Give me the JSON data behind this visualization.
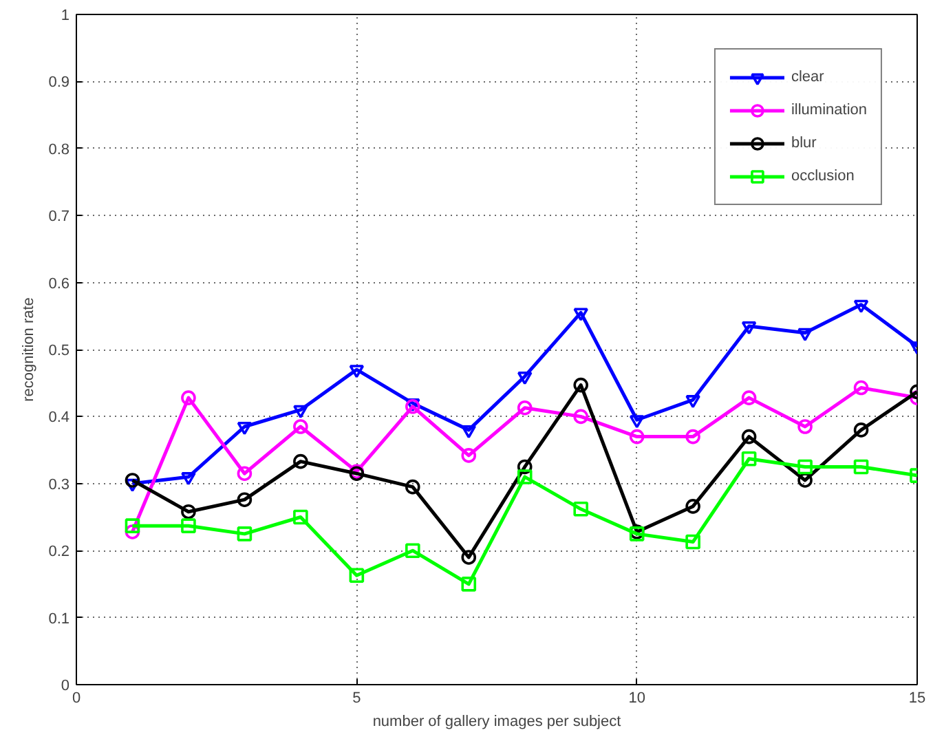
{
  "chart_data": {
    "type": "line",
    "xlabel": "number of gallery images per subject",
    "ylabel": "recognition rate",
    "x": [
      1,
      2,
      3,
      4,
      5,
      6,
      7,
      8,
      9,
      10,
      11,
      12,
      13,
      14,
      15
    ],
    "xlim": [
      0,
      15
    ],
    "xticks": [
      0,
      5,
      10,
      15
    ],
    "ylim": [
      0,
      1
    ],
    "yticks": [
      0,
      0.1,
      0.2,
      0.3,
      0.4,
      0.5,
      0.6,
      0.7,
      0.8,
      0.9,
      1
    ],
    "grid": true,
    "legend": "top right",
    "line_style": "solid",
    "series": [
      {
        "name": "clear",
        "color": "#0000ff",
        "marker": "triangle",
        "values": [
          0.3,
          0.31,
          0.385,
          0.41,
          0.47,
          0.42,
          0.38,
          0.46,
          0.555,
          0.395,
          0.425,
          0.535,
          0.525,
          0.567,
          0.505
        ]
      },
      {
        "name": "illumination",
        "color": "#ff00ff",
        "marker": "circle",
        "values": [
          0.228,
          0.428,
          0.315,
          0.385,
          0.318,
          0.415,
          0.342,
          0.413,
          0.4,
          0.37,
          0.37,
          0.428,
          0.385,
          0.443,
          0.428
        ]
      },
      {
        "name": "blur",
        "color": "#000000",
        "marker": "circle",
        "values": [
          0.305,
          0.258,
          0.276,
          0.333,
          0.315,
          0.295,
          0.19,
          0.325,
          0.447,
          0.228,
          0.266,
          0.37,
          0.305,
          0.38,
          0.437
        ]
      },
      {
        "name": "occlusion",
        "color": "#00ff00",
        "marker": "square",
        "values": [
          0.237,
          0.237,
          0.225,
          0.25,
          0.163,
          0.2,
          0.15,
          0.31,
          0.262,
          0.225,
          0.213,
          0.337,
          0.325,
          0.325,
          0.312
        ]
      }
    ]
  }
}
